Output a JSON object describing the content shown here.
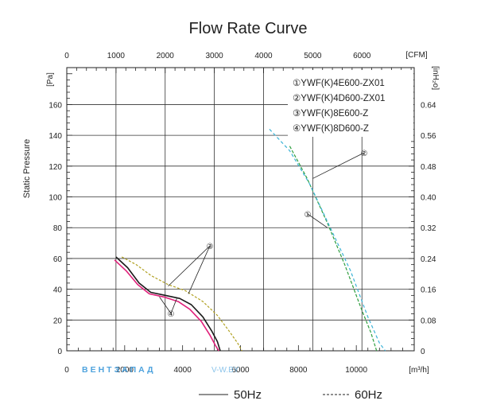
{
  "chart_data": {
    "type": "line",
    "title": "Flow Rate Curve",
    "ylabel": "Static Pressure",
    "x_bottom": {
      "unit": "[m³/h]",
      "ticks": [
        0,
        2000,
        4000,
        6000,
        8000,
        10000
      ],
      "range": [
        0,
        12000
      ]
    },
    "x_top": {
      "unit": "[CFM]",
      "ticks": [
        0,
        1000,
        2000,
        3000,
        4000,
        5000,
        6000
      ],
      "range": [
        0,
        7062.9
      ]
    },
    "y_left": {
      "unit": "[Pa]",
      "ticks": [
        0,
        20,
        40,
        60,
        80,
        100,
        120,
        140,
        160
      ],
      "range": [
        0,
        184
      ]
    },
    "y_right": {
      "unit": "[inH₂o]",
      "ticks": [
        "0",
        "0.08",
        "0.16",
        "0.24",
        "0.32",
        "0.40",
        "0.48",
        "0.56",
        "0.64"
      ]
    },
    "legend_items": [
      {
        "marker": "①",
        "label": "YWF(K)4E600-ZX01"
      },
      {
        "marker": "②",
        "label": "YWF(K)4D600-ZX01"
      },
      {
        "marker": "③",
        "label": "YWF(K)8E600-Z"
      },
      {
        "marker": "④",
        "label": "YWF(K)8D600-Z"
      }
    ],
    "series": [
      {
        "marker": "①",
        "freq": "50Hz",
        "color": "#2e9e3e",
        "dash": "4,2",
        "points": [
          [
            7700,
            133
          ],
          [
            8300,
            112
          ],
          [
            9000,
            83
          ],
          [
            9600,
            56
          ],
          [
            10200,
            26
          ],
          [
            10500,
            12
          ],
          [
            10700,
            0
          ]
        ]
      },
      {
        "marker": "②",
        "freq": "60Hz",
        "color": "#3ab2d6",
        "dash": "4,3",
        "points": [
          [
            7000,
            144
          ],
          [
            7700,
            130
          ],
          [
            8400,
            108
          ],
          [
            9100,
            80
          ],
          [
            9800,
            52
          ],
          [
            10400,
            22
          ],
          [
            10800,
            5
          ],
          [
            11000,
            0
          ]
        ]
      },
      {
        "marker": "③",
        "freq": "50Hz",
        "color": "#1a1a1a",
        "dash": "",
        "points": [
          [
            1700,
            61
          ],
          [
            2100,
            54
          ],
          [
            2500,
            44
          ],
          [
            2900,
            38
          ],
          [
            3400,
            36
          ],
          [
            3900,
            34
          ],
          [
            4300,
            30
          ],
          [
            4700,
            22
          ],
          [
            5000,
            13
          ],
          [
            5200,
            6
          ],
          [
            5300,
            0
          ]
        ]
      },
      {
        "marker": "④",
        "freq": "50Hz",
        "color": "#e0207a",
        "dash": "",
        "points": [
          [
            1650,
            59
          ],
          [
            2050,
            52
          ],
          [
            2450,
            43
          ],
          [
            2850,
            37
          ],
          [
            3350,
            35
          ],
          [
            3850,
            32
          ],
          [
            4250,
            27
          ],
          [
            4650,
            19
          ],
          [
            4950,
            10
          ],
          [
            5150,
            3
          ],
          [
            5250,
            0
          ]
        ]
      },
      {
        "marker": "③④",
        "freq": "60Hz",
        "color": "#b0a020",
        "dash": "3,2",
        "points": [
          [
            1900,
            61
          ],
          [
            2400,
            56
          ],
          [
            2900,
            49
          ],
          [
            3500,
            43
          ],
          [
            4100,
            39
          ],
          [
            4700,
            32
          ],
          [
            5200,
            23
          ],
          [
            5600,
            13
          ],
          [
            5900,
            5
          ],
          [
            6050,
            0
          ]
        ]
      }
    ],
    "grid": true,
    "bottom_legend": [
      {
        "style": "solid",
        "label": "50Hz"
      },
      {
        "style": "dashed",
        "label": "60Hz"
      }
    ],
    "annotations": [
      "①",
      "②",
      "③",
      "④"
    ]
  },
  "watermark": {
    "text": "ВЕНТЗАПАД",
    "text2": "V-W.BY"
  }
}
